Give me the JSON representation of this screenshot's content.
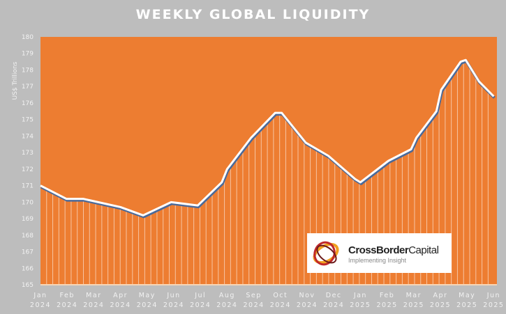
{
  "chart_data": {
    "type": "area",
    "title": "WEEKLY GLOBAL LIQUIDITY",
    "ylabel": "US$ Trillions",
    "xlabel": "",
    "ylim": [
      165,
      180
    ],
    "yticks": [
      165,
      166,
      167,
      168,
      169,
      170,
      171,
      172,
      173,
      174,
      175,
      176,
      177,
      178,
      179,
      180
    ],
    "xticks": [
      [
        "Jan",
        "2024"
      ],
      [
        "Feb",
        "2024"
      ],
      [
        "Mar",
        "2024"
      ],
      [
        "Apr",
        "2024"
      ],
      [
        "May",
        "2024"
      ],
      [
        "Jun",
        "2024"
      ],
      [
        "Jul",
        "2024"
      ],
      [
        "Aug",
        "2024"
      ],
      [
        "Sep",
        "2024"
      ],
      [
        "Oct",
        "2024"
      ],
      [
        "Nov",
        "2024"
      ],
      [
        "Dec",
        "2024"
      ],
      [
        "Jan",
        "2025"
      ],
      [
        "Feb",
        "2025"
      ],
      [
        "Mar",
        "2025"
      ],
      [
        "Apr",
        "2025"
      ],
      [
        "May",
        "2025"
      ],
      [
        "Jun",
        "2025"
      ]
    ],
    "x_months_since_jan2024": [
      0,
      0.97,
      1.6,
      3.0,
      3.85,
      4.9,
      5.9,
      6.8,
      7.0,
      7.9,
      8.8,
      9.05,
      9.95,
      10.8,
      11.8,
      12.0,
      13.05,
      13.9,
      14.1,
      14.85,
      15.03,
      15.76,
      15.95,
      16.45,
      17.0
    ],
    "values": [
      171.0,
      170.2,
      170.2,
      169.7,
      169.2,
      170.0,
      169.8,
      171.2,
      172.0,
      173.9,
      175.4,
      175.4,
      173.6,
      172.8,
      171.4,
      171.2,
      172.5,
      173.2,
      173.9,
      175.5,
      176.8,
      178.5,
      178.6,
      177.3,
      176.4
    ],
    "colors": {
      "plot": "#ed7d31",
      "line": "#ffffff",
      "shadow": "#4a6a9a",
      "background": "#bdbdbd"
    }
  },
  "logo": {
    "name_bold": "CrossBorder",
    "name_regular": "Capital",
    "tagline": "Implementing Insight"
  }
}
